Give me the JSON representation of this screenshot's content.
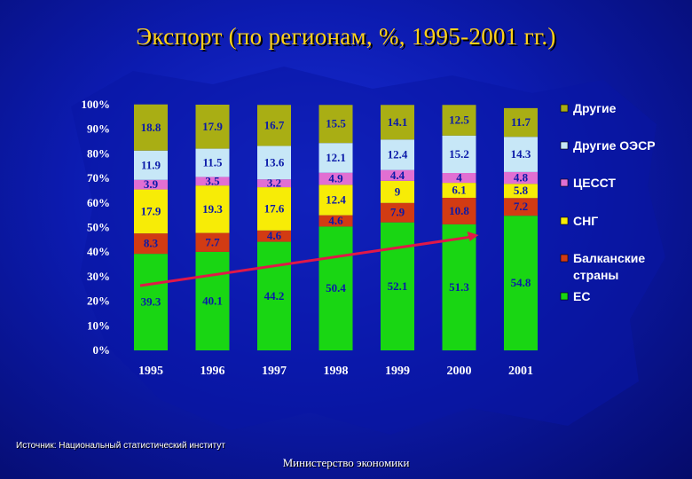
{
  "title": "Экспорт (по регионам, %, 1995-2001 гг.)",
  "source": "Источник: Национальный статистический институт",
  "footer": "Министерство экономики",
  "colors": {
    "ЕС": "#19d613",
    "Балканские страны": "#d23b13",
    "СНГ": "#f7ec06",
    "ЦЕССТ": "#e16fd2",
    "Другие ОЭСР": "#c7e7f7",
    "Другие": "#a9ae14",
    "trend": "#e01848"
  },
  "chart_data": {
    "type": "bar",
    "stacked": true,
    "categories": [
      "1995",
      "1996",
      "1997",
      "1998",
      "1999",
      "2000",
      "2001"
    ],
    "series": [
      {
        "name": "ЕС",
        "values": [
          39.3,
          40.1,
          44.2,
          50.4,
          52.1,
          51.3,
          54.8
        ]
      },
      {
        "name": "Балканские страны",
        "values": [
          8.3,
          7.7,
          4.6,
          4.6,
          7.9,
          10.8,
          7.2
        ]
      },
      {
        "name": "СНГ",
        "values": [
          17.9,
          19.3,
          17.6,
          12.4,
          9.0,
          6.1,
          5.8
        ]
      },
      {
        "name": "ЦЕССТ",
        "values": [
          3.9,
          3.5,
          3.2,
          4.9,
          4.4,
          4.0,
          4.8
        ]
      },
      {
        "name": "Другие ОЭСР",
        "values": [
          11.9,
          11.5,
          13.6,
          12.1,
          12.4,
          15.2,
          14.3
        ]
      },
      {
        "name": "Другие",
        "values": [
          18.8,
          17.9,
          16.7,
          15.5,
          14.1,
          12.5,
          11.7
        ]
      }
    ],
    "ylim": [
      0,
      100
    ],
    "y_ticks": [
      "0%",
      "10%",
      "20%",
      "30%",
      "40%",
      "50%",
      "60%",
      "70%",
      "80%",
      "90%",
      "100%"
    ],
    "legend": [
      "Другие",
      "Другие ОЭСР",
      "ЦЕССТ",
      "СНГ",
      "Балканские страны",
      "ЕС"
    ],
    "legend_position": "right",
    "trend_line": {
      "from_category": "1995",
      "to_category": "2000"
    },
    "grid": false
  }
}
